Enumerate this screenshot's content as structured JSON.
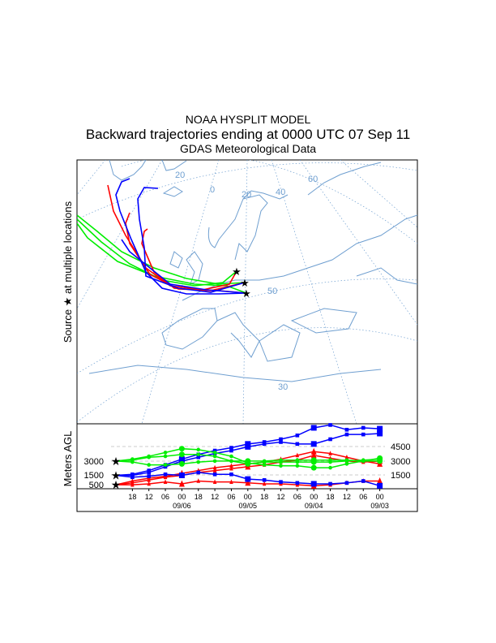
{
  "title": {
    "line1": "NOAA HYSPLIT MODEL",
    "line2": "Backward trajectories ending at 0000 UTC 07 Sep 11",
    "line3": "GDAS Meteorological Data"
  },
  "map": {
    "side_label": "Source ★ at multiple locations",
    "grid_labels": [
      "20",
      "0",
      "20",
      "40",
      "60",
      "50",
      "30"
    ],
    "colors": {
      "coast": "#6f9fd0",
      "red": "#ff0000",
      "blue": "#0000ff",
      "green": "#00ee00"
    }
  },
  "chart_data": {
    "type": "line",
    "ylabel": "Meters AGL",
    "y_ticks_left": [
      "3000",
      "1500",
      "500"
    ],
    "y_ticks_right": [
      "4500",
      "3000",
      "1500"
    ],
    "x_hour_labels": [
      "18",
      "12",
      "06",
      "00",
      "18",
      "12",
      "06",
      "00",
      "18",
      "12",
      "06",
      "00",
      "18",
      "12",
      "06",
      "00"
    ],
    "x_date_labels": [
      "09/06",
      "09/05",
      "09/04",
      "09/03"
    ],
    "hours_back_step": 6,
    "ylim": [
      0,
      6500
    ],
    "series": [
      {
        "name": "red-1",
        "color": "#ff0000",
        "marker": "triangle",
        "values": [
          500,
          500,
          600,
          800,
          600,
          900,
          800,
          800,
          700,
          600,
          600,
          500,
          400,
          500,
          700,
          900,
          900
        ]
      },
      {
        "name": "red-2",
        "color": "#ff0000",
        "marker": "triangle",
        "values": [
          500,
          900,
          1200,
          1400,
          1700,
          2000,
          2300,
          2500,
          2700,
          2900,
          3200,
          3600,
          4000,
          3800,
          3400,
          3000,
          2700
        ]
      },
      {
        "name": "red-3",
        "color": "#ff0000",
        "marker": "triangle",
        "values": [
          500,
          700,
          1000,
          1300,
          1500,
          1800,
          2000,
          2200,
          2400,
          2600,
          2900,
          3100,
          3600,
          3300,
          3000,
          2900,
          3000
        ]
      },
      {
        "name": "blue-1",
        "color": "#0000ff",
        "marker": "square",
        "values": [
          1500,
          1300,
          1400,
          1600,
          1500,
          1800,
          1600,
          1600,
          1100,
          1000,
          800,
          700,
          600,
          600,
          700,
          900,
          400
        ]
      },
      {
        "name": "blue-2",
        "color": "#0000ff",
        "marker": "square",
        "values": [
          1500,
          1500,
          1800,
          2400,
          3000,
          3400,
          3800,
          4100,
          4500,
          4800,
          5000,
          4800,
          4800,
          5300,
          5800,
          5800,
          5900
        ]
      },
      {
        "name": "blue-3",
        "color": "#0000ff",
        "marker": "square",
        "values": [
          1500,
          1600,
          2000,
          2600,
          3200,
          3700,
          4100,
          4400,
          4800,
          5000,
          5300,
          5700,
          6500,
          6800,
          6300,
          6500,
          6400
        ]
      },
      {
        "name": "green-1",
        "color": "#00ee00",
        "marker": "circle",
        "values": [
          3000,
          3200,
          3500,
          3900,
          4300,
          4200,
          3900,
          3500,
          2800,
          2600,
          2500,
          2500,
          2300,
          2300,
          2700,
          3000,
          3300
        ]
      },
      {
        "name": "green-2",
        "color": "#00ee00",
        "marker": "circle",
        "values": [
          3000,
          3100,
          3400,
          3500,
          3700,
          3700,
          3500,
          3000,
          2700,
          2900,
          2900,
          2900,
          2900,
          2900,
          3000,
          3100,
          3200
        ]
      },
      {
        "name": "green-3",
        "color": "#00ee00",
        "marker": "circle",
        "values": [
          3000,
          2900,
          2600,
          2600,
          2700,
          2900,
          3000,
          3000,
          3000,
          3000,
          3100,
          3100,
          3100,
          3100,
          3100,
          3000,
          3000
        ]
      }
    ]
  }
}
